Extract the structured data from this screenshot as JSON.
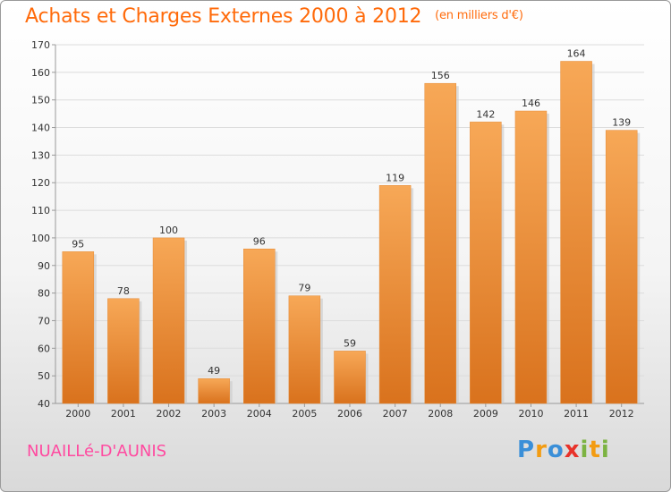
{
  "title": "Achats et Charges Externes 2000 à 2012",
  "unit": "(en milliers d'€)",
  "place": "NUAILLé-D'AUNIS",
  "logo": {
    "letters": [
      "P",
      "r",
      "o",
      "x",
      "i",
      "t",
      "i"
    ],
    "colors": [
      "#3a8fd8",
      "#f39c12",
      "#3a8fd8",
      "#e8322a",
      "#7cb342",
      "#f39c12",
      "#7cb342"
    ]
  },
  "colors": {
    "bar_top": "#f7a857",
    "bar_bottom": "#d9721d",
    "accent": "#ff6a0a"
  },
  "chart_data": {
    "type": "bar",
    "categories": [
      "2000",
      "2001",
      "2002",
      "2003",
      "2004",
      "2005",
      "2006",
      "2007",
      "2008",
      "2009",
      "2010",
      "2011",
      "2012"
    ],
    "values": [
      95,
      78,
      100,
      49,
      96,
      79,
      59,
      119,
      156,
      142,
      146,
      164,
      139
    ],
    "ylim": [
      40,
      170
    ],
    "yticks": [
      40,
      50,
      60,
      70,
      80,
      90,
      100,
      110,
      120,
      130,
      140,
      150,
      160,
      170
    ],
    "grid": true
  }
}
